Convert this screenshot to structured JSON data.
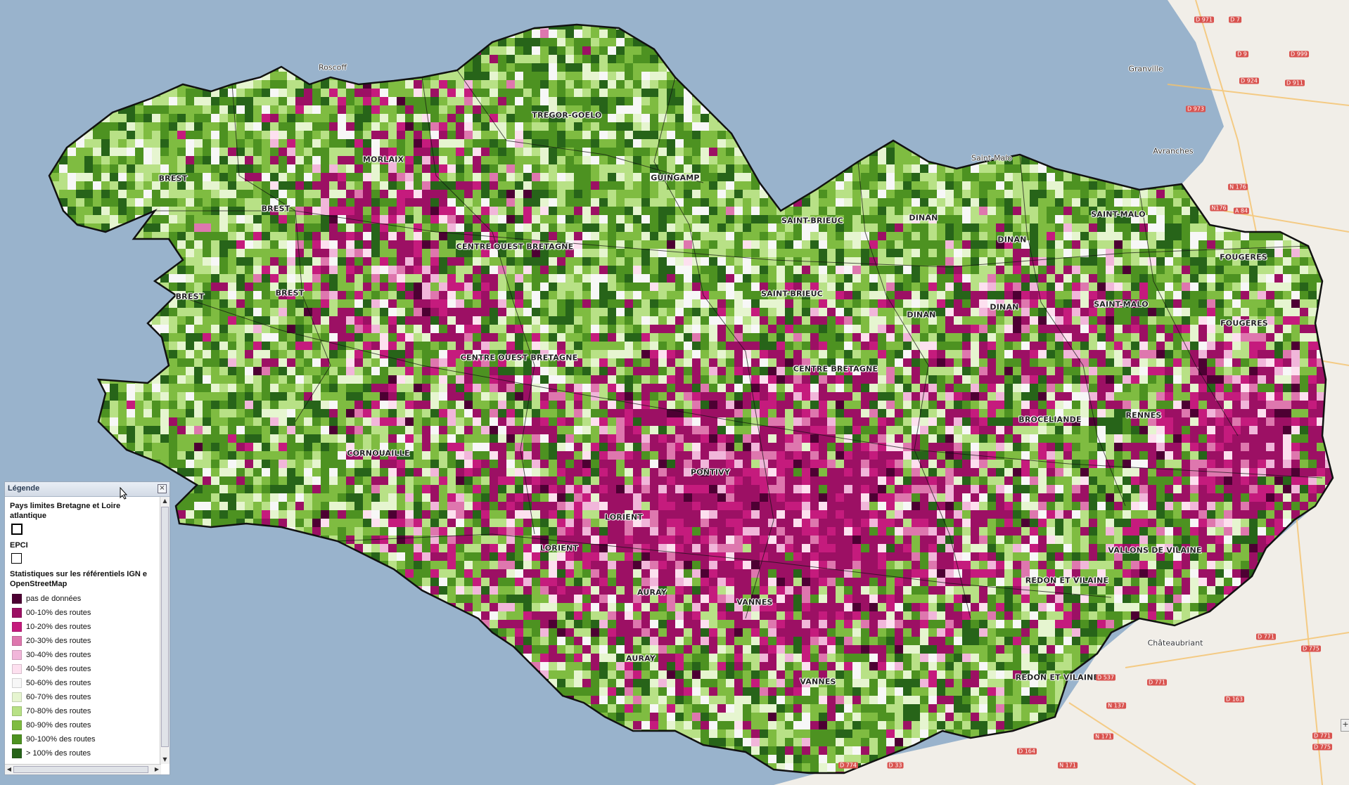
{
  "map": {
    "pays_labels": [
      "TREGOR-GOELO",
      "MORLAIX",
      "BREST",
      "BREST",
      "BREST",
      "BREST",
      "GUINGAMP",
      "CENTRE OUEST BRETAGNE",
      "SAINT-BRIEUC",
      "DINAN",
      "DINAN",
      "SAINT-MALO",
      "SAINT-BRIEUC",
      "DINAN",
      "DINAN",
      "SAINT-MALO",
      "FOUGERES",
      "FOUGERES",
      "CENTRE OUEST BRETAGNE",
      "CENTRE BRETAGNE",
      "BROCELIANDE",
      "RENNES",
      "CORNOUAILLE",
      "PONTIVY",
      "LORIENT",
      "LORIENT",
      "VALLONS DE VILAINE",
      "REDON ET VILAINE",
      "AURAY",
      "VANNES",
      "AURAY",
      "VANNES",
      "REDON ET VILAINE"
    ],
    "towns": [
      "Roscoff",
      "Granville",
      "Avranches",
      "Saint-Malo",
      "Châteaubriant"
    ],
    "roads": [
      "D 971",
      "D 7",
      "D 9",
      "D 999",
      "D 924",
      "D 973",
      "D 911",
      "N 176",
      "N176",
      "A 84",
      "D 771",
      "D 775",
      "N 137",
      "D 537",
      "D 771",
      "D 163",
      "N 171",
      "D 164",
      "N 171",
      "D 774",
      "D 33",
      "D 771",
      "D 775"
    ],
    "colors": {
      "sea": "#99b3cc",
      "land_base": "#f1eee8",
      "outline": "#111111"
    }
  },
  "legend": {
    "title": "Légende",
    "close_label": "×",
    "sections": [
      {
        "title": "Pays limites Bretagne et Loire atlantique",
        "symbol": "thick-box"
      },
      {
        "title": "EPCI",
        "symbol": "thin-box"
      }
    ],
    "stats_title": "Statistiques sur les référentiels IGN e OpenStreetMap",
    "items": [
      {
        "label": "pas de données",
        "color": "#4d0033"
      },
      {
        "label": "00-10% des routes",
        "color": "#9c1064"
      },
      {
        "label": "10-20% des routes",
        "color": "#c51b7d"
      },
      {
        "label": "20-30% des routes",
        "color": "#de77ae"
      },
      {
        "label": "30-40% des routes",
        "color": "#f1b6da"
      },
      {
        "label": "40-50% des routes",
        "color": "#fde0ef"
      },
      {
        "label": "50-60% des routes",
        "color": "#f7f7f7"
      },
      {
        "label": "60-70% des routes",
        "color": "#e6f5d0"
      },
      {
        "label": "70-80% des routes",
        "color": "#b8e186"
      },
      {
        "label": "80-90% des routes",
        "color": "#7fbc41"
      },
      {
        "label": "90-100% des routes",
        "color": "#4d9221"
      },
      {
        "label": "> 100% des routes",
        "color": "#276419"
      }
    ]
  },
  "controls": {
    "zoom_label": "+"
  }
}
